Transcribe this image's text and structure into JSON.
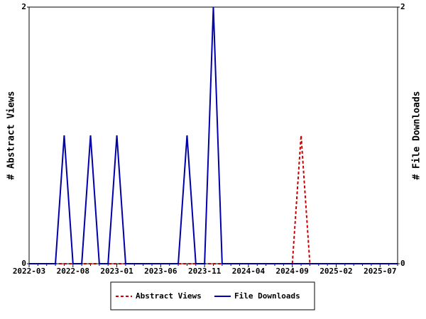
{
  "chart_data": {
    "type": "line",
    "categories": [
      "2022-03",
      null,
      null,
      null,
      null,
      "2022-08",
      null,
      null,
      null,
      null,
      "2023-01",
      null,
      null,
      null,
      null,
      "2023-06",
      null,
      null,
      null,
      null,
      "2023-11",
      null,
      null,
      null,
      null,
      "2024-04",
      null,
      null,
      null,
      null,
      "2024-09",
      null,
      null,
      null,
      null,
      "2025-02",
      null,
      null,
      null,
      null,
      "2025-07",
      null,
      null
    ],
    "y_label": "# Abstract Views",
    "y2_label": "# File Downloads",
    "ylim": [
      0,
      2
    ],
    "yticks": [
      0,
      2
    ],
    "y2lim": [
      0,
      2
    ],
    "y2ticks": [
      0,
      2
    ],
    "legend": "bottom",
    "series": [
      {
        "name": "Abstract Views",
        "color": "#cc0000",
        "dash": true,
        "values": [
          0,
          0,
          0,
          0,
          0,
          0,
          0,
          0,
          0,
          0,
          0,
          0,
          0,
          0,
          0,
          0,
          0,
          0,
          0,
          0,
          0,
          0,
          0,
          0,
          0,
          0,
          0,
          0,
          0,
          0,
          0,
          1,
          0,
          0,
          0,
          0,
          0,
          0,
          0,
          0,
          0,
          0,
          0
        ]
      },
      {
        "name": "File Downloads",
        "color": "#0000aa",
        "dash": false,
        "axis": "y2",
        "values": [
          0,
          0,
          0,
          0,
          1,
          0,
          0,
          1,
          0,
          0,
          1,
          0,
          0,
          0,
          0,
          0,
          0,
          0,
          1,
          0,
          0,
          2,
          0,
          0,
          0,
          0,
          0,
          0,
          0,
          0,
          0,
          0,
          0,
          0,
          0,
          0,
          0,
          0,
          0,
          0,
          0,
          0,
          0
        ]
      }
    ]
  }
}
